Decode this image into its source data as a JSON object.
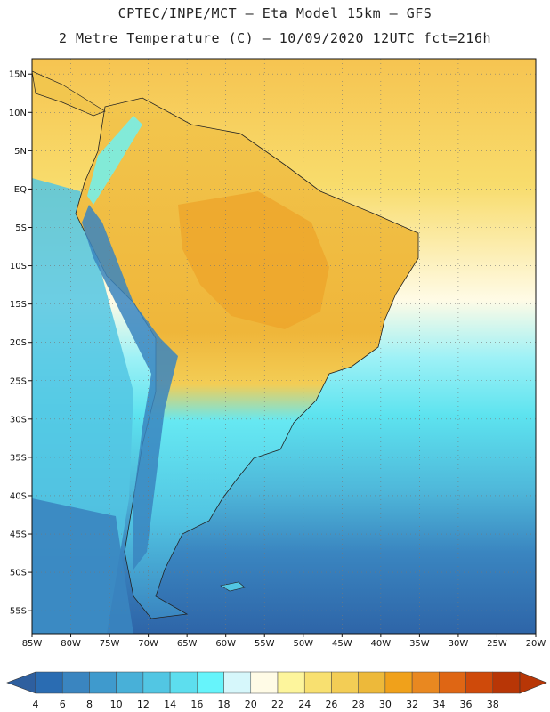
{
  "header": {
    "line1": "CPTEC/INPE/MCT –  Eta Model 15km – GFS",
    "line2": "2 Metre Temperature (C) – 10/09/2020 12UTC fct=216h"
  },
  "map": {
    "lat_labels": [
      "15N",
      "10N",
      "5N",
      "EQ",
      "5S",
      "10S",
      "15S",
      "20S",
      "25S",
      "30S",
      "35S",
      "40S",
      "45S",
      "50S",
      "55S"
    ],
    "lon_labels": [
      "85W",
      "80W",
      "75W",
      "70W",
      "65W",
      "60W",
      "55W",
      "50W",
      "45W",
      "40W",
      "35W",
      "30W",
      "25W",
      "20W"
    ],
    "lat_values": [
      15,
      10,
      5,
      0,
      -5,
      -10,
      -15,
      -20,
      -25,
      -30,
      -35,
      -40,
      -45,
      -50,
      -55
    ],
    "lon_values": [
      -85,
      -80,
      -75,
      -70,
      -65,
      -60,
      -55,
      -50,
      -45,
      -40,
      -35,
      -30,
      -25,
      -20
    ],
    "extent": {
      "lon_min": -85,
      "lon_max": -20,
      "lat_min": -58,
      "lat_max": 17
    }
  },
  "colorbar": {
    "labels": [
      "4",
      "6",
      "8",
      "10",
      "12",
      "14",
      "16",
      "18",
      "20",
      "22",
      "24",
      "26",
      "28",
      "30",
      "32",
      "34",
      "36",
      "38"
    ],
    "colors": [
      "#2a6cb2",
      "#3a85c0",
      "#3f9acd",
      "#48b0d8",
      "#52c6e3",
      "#5ddeee",
      "#66f4fb",
      "#d6f7fb",
      "#fffbe6",
      "#fdf59c",
      "#f8e070",
      "#f3cd55",
      "#edb93a",
      "#f0a11b",
      "#e98820",
      "#df6614",
      "#cf4a0a",
      "#b83606"
    ],
    "low_color": "#2e5f9f",
    "high_color": "#b83606"
  }
}
